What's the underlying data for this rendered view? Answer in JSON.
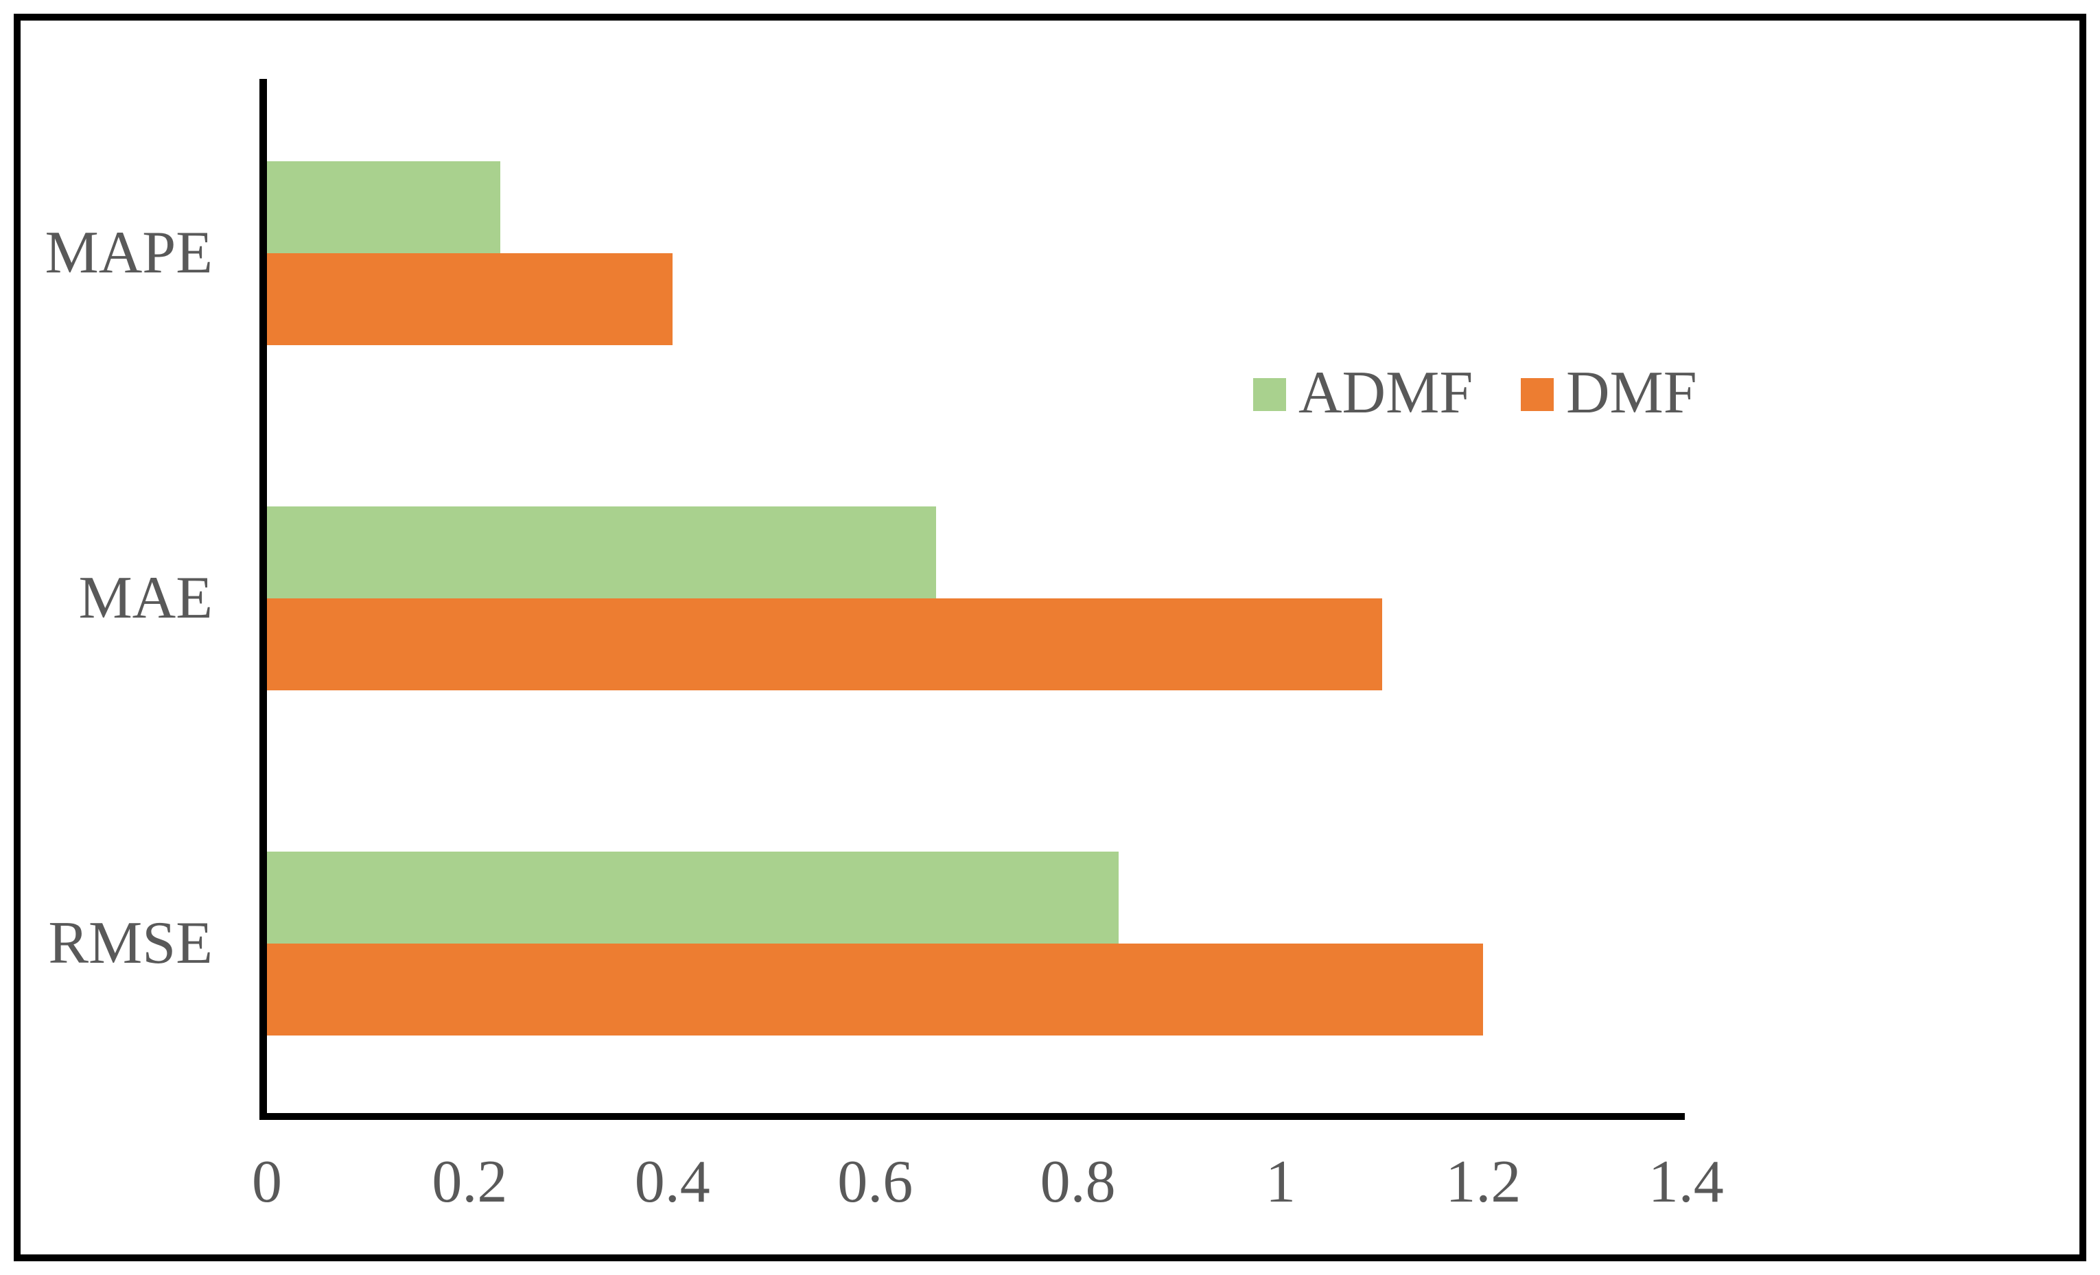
{
  "chart_data": {
    "type": "bar",
    "orientation": "horizontal",
    "title": "",
    "xlabel": "",
    "ylabel": "",
    "categories": [
      "MAPE",
      "MAE",
      "RMSE"
    ],
    "series": [
      {
        "name": "ADMF",
        "color": "#A9D18E",
        "values": [
          0.23,
          0.66,
          0.84
        ]
      },
      {
        "name": "DMF",
        "color": "#ED7D31",
        "values": [
          0.4,
          1.1,
          1.2
        ]
      }
    ],
    "xlim": [
      0,
      1.4
    ],
    "x_ticks": [
      {
        "label": "0",
        "value": 0.0
      },
      {
        "label": "0.2",
        "value": 0.2
      },
      {
        "label": "0.4",
        "value": 0.4
      },
      {
        "label": "0.6",
        "value": 0.6
      },
      {
        "label": "0.8",
        "value": 0.8
      },
      {
        "label": "1",
        "value": 1.0
      },
      {
        "label": "1.2",
        "value": 1.2
      },
      {
        "label": "1.4",
        "value": 1.4
      }
    ],
    "grid": false,
    "legend": {
      "entries": [
        "ADMF",
        "DMF"
      ],
      "position": "center-right",
      "marker": "square"
    },
    "styles": {
      "text_color": "#595959",
      "axis_color": "#000000",
      "frame_color": "#000000",
      "background": "#FFFFFF"
    }
  }
}
